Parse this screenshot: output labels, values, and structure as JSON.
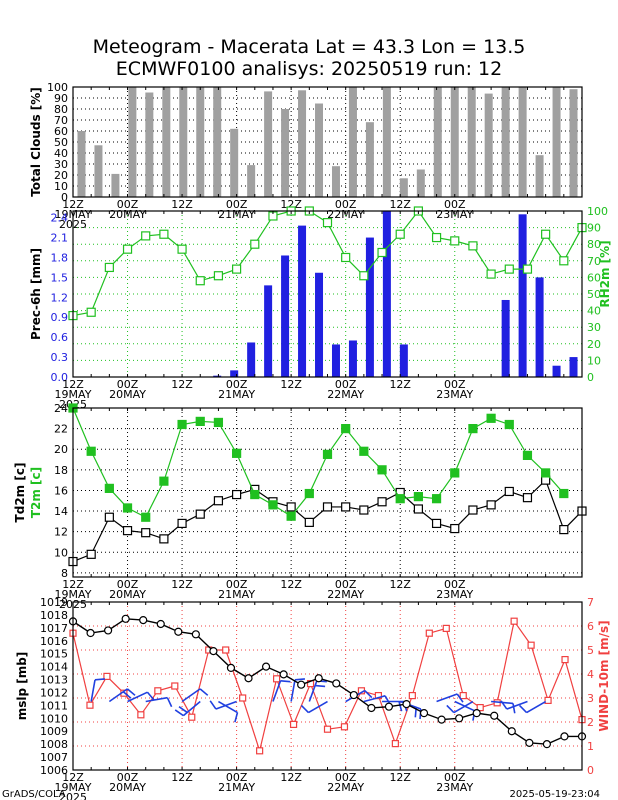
{
  "title": {
    "line1": "Meteogram - Macerata Lat = 43.3 Lon = 13.5",
    "line2": "ECMWF0100 analisys: 20250519 run: 12"
  },
  "footer": {
    "left": "GrADS/COLA",
    "right": "2025-05-19-23:04"
  },
  "x_axis": {
    "labels": [
      {
        "i": 0,
        "top": "12Z",
        "bottom": "19MAY",
        "year": "2025"
      },
      {
        "i": 3,
        "top": "00Z",
        "bottom": "20MAY",
        "year": ""
      },
      {
        "i": 6,
        "top": "12Z",
        "bottom": "",
        "year": ""
      },
      {
        "i": 9,
        "top": "00Z",
        "bottom": "21MAY",
        "year": ""
      },
      {
        "i": 12,
        "top": "12Z",
        "bottom": "",
        "year": ""
      },
      {
        "i": 15,
        "top": "00Z",
        "bottom": "22MAY",
        "year": ""
      },
      {
        "i": 18,
        "top": "12Z",
        "bottom": "",
        "year": ""
      },
      {
        "i": 21,
        "top": "00Z",
        "bottom": "23MAY",
        "year": ""
      }
    ]
  },
  "chart_data": [
    {
      "type": "bar",
      "panel": "clouds",
      "ylabel": "Total Clouds [%]",
      "ylim": [
        0,
        100
      ],
      "yticks": [
        0,
        10,
        20,
        30,
        40,
        50,
        60,
        70,
        80,
        90,
        100
      ],
      "color": "#a0a0a0",
      "values": [
        60,
        47,
        21,
        100,
        95,
        100,
        100,
        100,
        100,
        62,
        29,
        96,
        80,
        97,
        85,
        28,
        100,
        68,
        100,
        17,
        25,
        100,
        100,
        100,
        94,
        100,
        100,
        38,
        100,
        98
      ]
    },
    {
      "type": "bar+line",
      "panel": "precip-rh",
      "series": [
        {
          "name": "Prec-6h [mm]",
          "kind": "bar",
          "axis": "left",
          "color": "#2020e0",
          "values": [
            0,
            0,
            0,
            0,
            0,
            0,
            0,
            0,
            0.02,
            0.1,
            0.52,
            1.38,
            1.83,
            2.28,
            1.57,
            0.49,
            0.55,
            2.1,
            2.5,
            0.49,
            0,
            0,
            0,
            0,
            0,
            1.16,
            2.45,
            1.5,
            0.17,
            0.3
          ]
        },
        {
          "name": "RH2m [%]",
          "kind": "line",
          "axis": "right",
          "color": "#20c020",
          "values": [
            37,
            39,
            66,
            77,
            85,
            86,
            77,
            58,
            61,
            65,
            80,
            97,
            100,
            100,
            93,
            72,
            61,
            75,
            86,
            100,
            84,
            82,
            79,
            62,
            65,
            65,
            86,
            70,
            90
          ]
        }
      ],
      "ylabel_left": "Prec-6h [mm]",
      "ylabel_right": "RH2m [%]",
      "ylim_left": [
        0,
        2.5
      ],
      "yticks_left": [
        0,
        0.3,
        0.6,
        0.9,
        1.2,
        1.5,
        1.8,
        2.1,
        2.4
      ],
      "ylim_right": [
        0,
        100
      ],
      "yticks_right": [
        0,
        10,
        20,
        30,
        40,
        50,
        60,
        70,
        80,
        90,
        100
      ]
    },
    {
      "type": "line",
      "panel": "temperature",
      "ylabel": "Td2m [c]",
      "ylabel2": "T2m [c]",
      "ylim": [
        7.6,
        24
      ],
      "yticks": [
        8,
        10,
        12,
        14,
        16,
        18,
        20,
        22,
        24
      ],
      "series": [
        {
          "name": "Td2m [c]",
          "color": "#000000",
          "marker": "open-square",
          "values": [
            9.1,
            9.8,
            13.4,
            12.1,
            11.9,
            11.3,
            12.8,
            13.7,
            15.0,
            15.6,
            16.1,
            14.9,
            14.4,
            12.9,
            14.4,
            14.4,
            14.1,
            14.9,
            15.8,
            14.2,
            12.8,
            12.3,
            14.1,
            14.6,
            15.9,
            15.3,
            17.0,
            12.2,
            14.0
          ]
        },
        {
          "name": "T2m [c]",
          "color": "#20c020",
          "marker": "filled-square",
          "values": [
            24.0,
            19.8,
            16.2,
            14.3,
            13.4,
            16.9,
            22.4,
            22.7,
            22.6,
            19.6,
            15.6,
            14.6,
            13.5,
            15.7,
            19.5,
            22.0,
            19.8,
            18.0,
            15.2,
            15.4,
            15.2,
            17.7,
            22.0,
            23.0,
            22.4,
            19.4,
            17.7,
            15.7
          ]
        }
      ]
    },
    {
      "type": "line",
      "panel": "pressure-wind",
      "ylabel": "mslp [mb]",
      "ylabel_right": "WIND-10m [m/s]",
      "ylim": [
        1006,
        1019
      ],
      "yticks": [
        1006,
        1007,
        1008,
        1009,
        1010,
        1011,
        1012,
        1013,
        1014,
        1015,
        1016,
        1017,
        1018,
        1019
      ],
      "ylim_right": [
        0,
        7
      ],
      "yticks_right": [
        0,
        1,
        2,
        3,
        4,
        5,
        6,
        7
      ],
      "series": [
        {
          "name": "mslp [mb]",
          "axis": "left",
          "color": "#000000",
          "marker": "open-circle",
          "values": [
            1017.5,
            1016.6,
            1016.8,
            1017.7,
            1017.6,
            1017.3,
            1016.7,
            1016.5,
            1015.2,
            1013.9,
            1013.1,
            1014.0,
            1013.4,
            1012.6,
            1013.1,
            1012.7,
            1011.8,
            1010.8,
            1010.9,
            1011.1,
            1010.4,
            1009.9,
            1010.0,
            1010.4,
            1010.2,
            1009.0,
            1008.1,
            1008.0,
            1008.6,
            1008.6
          ]
        },
        {
          "name": "WIND-10m [m/s]",
          "axis": "right",
          "color": "#f04040",
          "marker": "open-square",
          "values": [
            5.7,
            2.7,
            3.9,
            3.2,
            2.3,
            3.3,
            3.5,
            2.2,
            5.0,
            5.0,
            3.0,
            0.8,
            3.8,
            1.9,
            3.6,
            1.7,
            1.8,
            3.3,
            3.1,
            1.1,
            3.1,
            5.7,
            5.9,
            3.1,
            2.6,
            2.8,
            6.2,
            5.2,
            2.9,
            4.6,
            2.1
          ]
        }
      ],
      "barbs": [
        {
          "i": 1,
          "dir": 10,
          "spd": 3.2
        },
        {
          "i": 2,
          "dir": 55,
          "spd": 3.8
        },
        {
          "i": 3,
          "dir": 65,
          "spd": 3.0
        },
        {
          "i": 4,
          "dir": 80,
          "spd": 3.3
        },
        {
          "i": 6,
          "dir": 55,
          "spd": 2.7
        },
        {
          "i": 7,
          "dir": 230,
          "spd": 5.0
        },
        {
          "i": 8,
          "dir": 120,
          "spd": 3.0
        },
        {
          "i": 9,
          "dir": 250,
          "spd": 1.9
        },
        {
          "i": 11,
          "dir": 20,
          "spd": 3.5
        },
        {
          "i": 12,
          "dir": 10,
          "spd": 2.0
        },
        {
          "i": 13,
          "dir": 20,
          "spd": 3.8
        },
        {
          "i": 14,
          "dir": 240,
          "spd": 1.8
        },
        {
          "i": 15,
          "dir": 60,
          "spd": 3.1
        },
        {
          "i": 16,
          "dir": 75,
          "spd": 3.3
        },
        {
          "i": 17,
          "dir": 90,
          "spd": 5.0
        },
        {
          "i": 18,
          "dir": 110,
          "spd": 4.0
        },
        {
          "i": 20,
          "dir": 70,
          "spd": 2.8
        },
        {
          "i": 21,
          "dir": 115,
          "spd": 3.0
        },
        {
          "i": 22,
          "dir": 240,
          "spd": 2.5
        },
        {
          "i": 23,
          "dir": 95,
          "spd": 3.0
        },
        {
          "i": 25,
          "dir": 250,
          "spd": 3.0
        },
        {
          "i": 26,
          "dir": 240,
          "spd": 2.5
        }
      ]
    }
  ]
}
